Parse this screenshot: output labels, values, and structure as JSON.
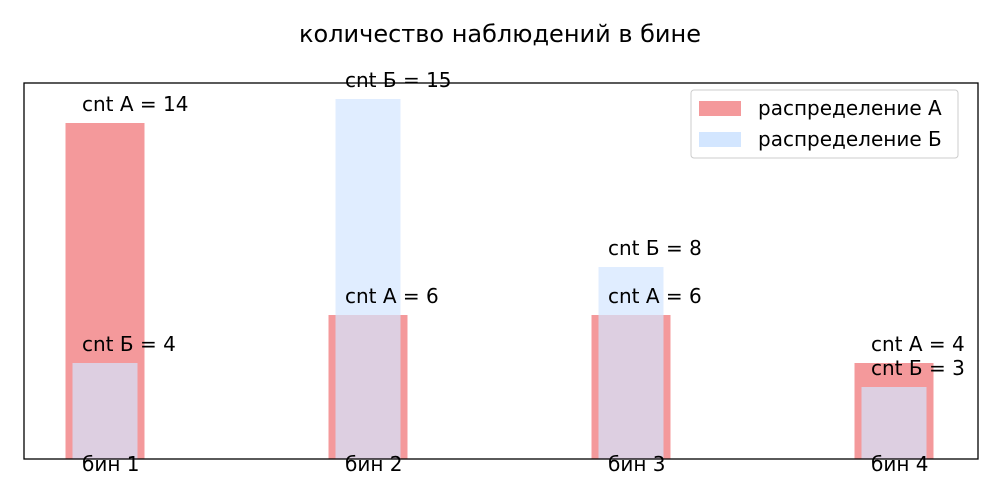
{
  "chart_data": {
    "type": "bar",
    "title": "количество наблюдений в бине",
    "xlabel": "",
    "ylabel": "",
    "categories": [
      "бин 1",
      "бин 2",
      "бин 3",
      "бин 4"
    ],
    "series": [
      {
        "name": "распределение А",
        "values": [
          14,
          6,
          6,
          4
        ],
        "color": "#f4999b",
        "label_prefix": "cnt А = "
      },
      {
        "name": "распределение Б",
        "values": [
          4,
          15,
          8,
          3
        ],
        "color": "#d3e6ff",
        "label_prefix": "cnt Б = "
      }
    ],
    "ylim": [
      0,
      15.75
    ],
    "grid": false,
    "axes_ticks_visible": false,
    "legend_position": "upper right"
  }
}
